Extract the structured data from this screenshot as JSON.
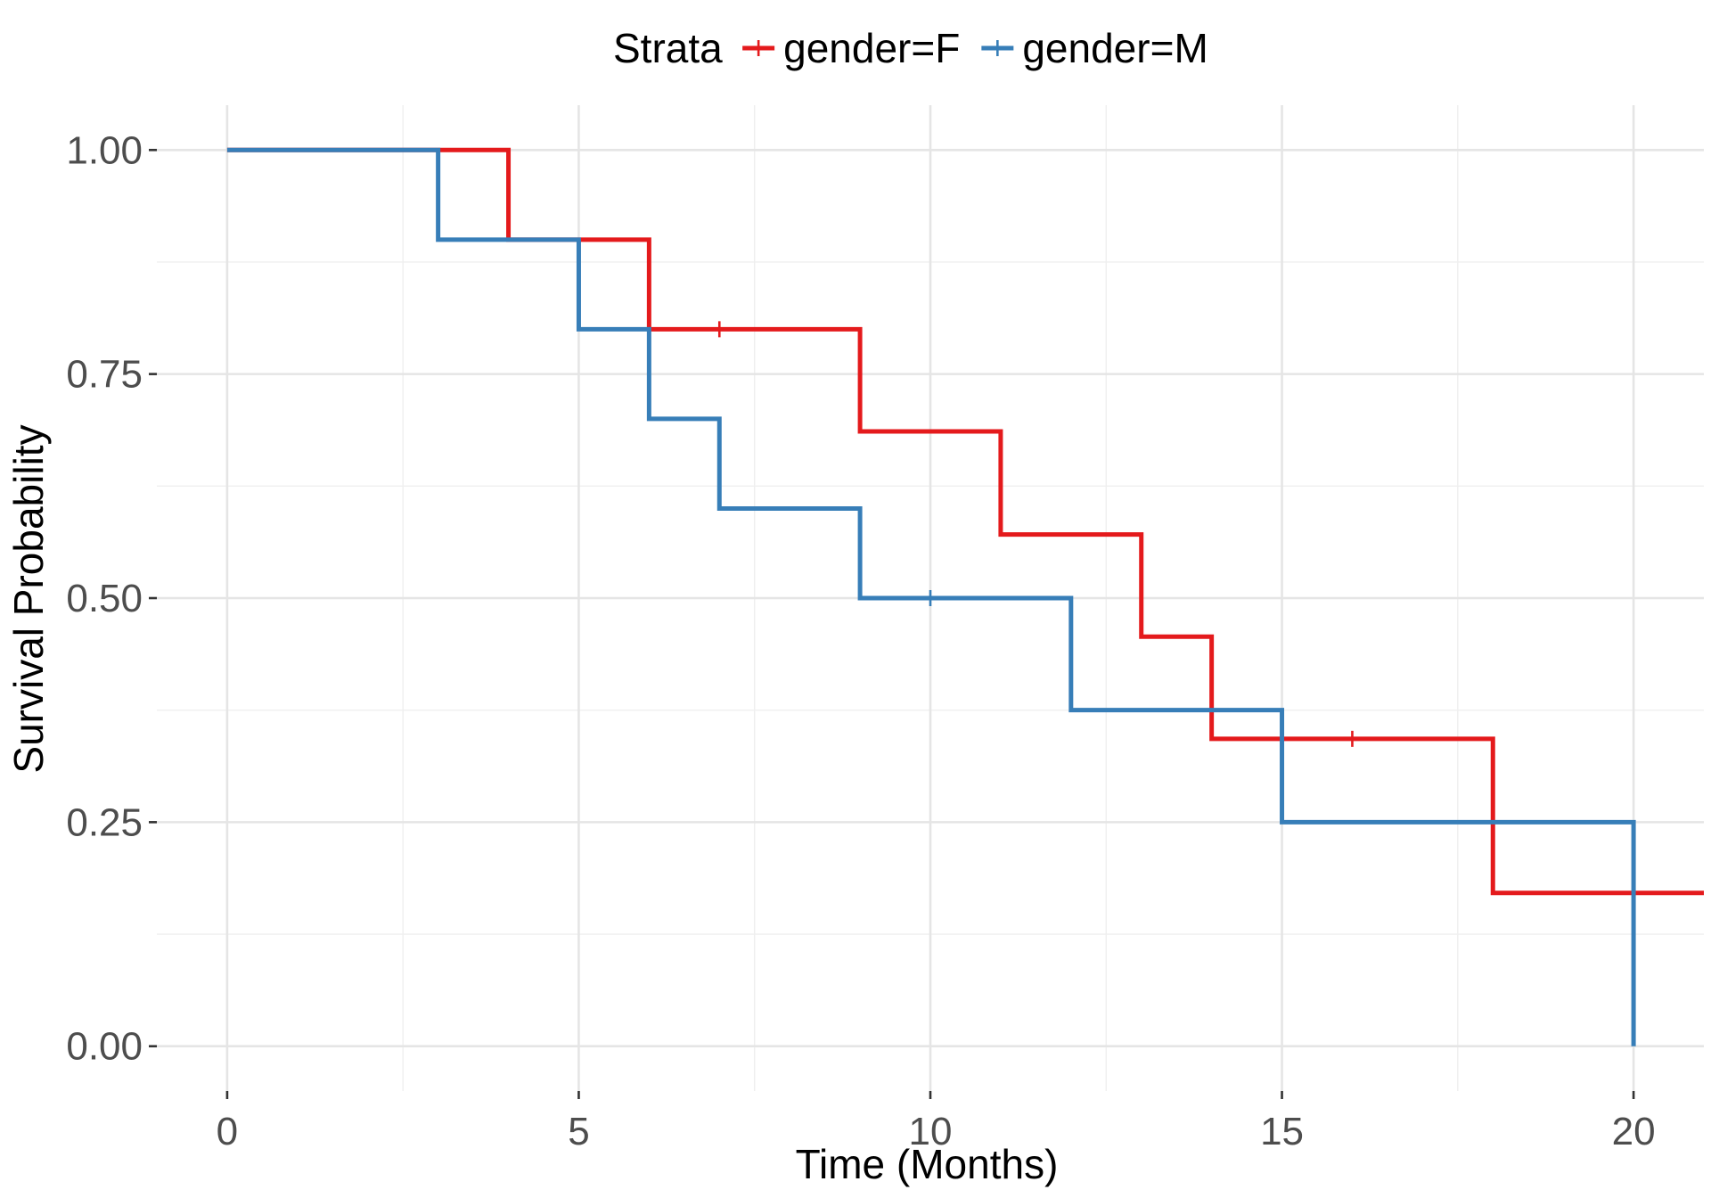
{
  "chart_data": {
    "type": "line",
    "subtype": "step",
    "xlabel": "Time (Months)",
    "ylabel": "Survival Probability",
    "xlim": [
      -1,
      21
    ],
    "ylim": [
      -0.05,
      1.05
    ],
    "x_ticks": [
      0,
      5,
      10,
      15,
      20
    ],
    "x_tick_labels": [
      "0",
      "5",
      "10",
      "15",
      "20"
    ],
    "y_ticks": [
      0,
      0.25,
      0.5,
      0.75,
      1
    ],
    "y_tick_labels": [
      "0.00",
      "0.25",
      "0.50",
      "0.75",
      "1.00"
    ],
    "grid": true,
    "legend": {
      "title": "Strata",
      "position": "top"
    },
    "series": [
      {
        "name": "gender=F",
        "color": "#e41a1c",
        "steps": [
          {
            "x": 0,
            "y": 1.0
          },
          {
            "x": 4,
            "y": 0.9
          },
          {
            "x": 6,
            "y": 0.8
          },
          {
            "x": 9,
            "y": 0.686
          },
          {
            "x": 11,
            "y": 0.571
          },
          {
            "x": 13,
            "y": 0.457
          },
          {
            "x": 14,
            "y": 0.343
          },
          {
            "x": 18,
            "y": 0.171
          }
        ],
        "end_x": 21,
        "censored": [
          {
            "x": 7,
            "y": 0.8
          },
          {
            "x": 16,
            "y": 0.343
          }
        ]
      },
      {
        "name": "gender=M",
        "color": "#377eb8",
        "steps": [
          {
            "x": 0,
            "y": 1.0
          },
          {
            "x": 3,
            "y": 0.9
          },
          {
            "x": 5,
            "y": 0.8
          },
          {
            "x": 6,
            "y": 0.7
          },
          {
            "x": 7,
            "y": 0.6
          },
          {
            "x": 9,
            "y": 0.5
          },
          {
            "x": 12,
            "y": 0.375
          },
          {
            "x": 15,
            "y": 0.25
          },
          {
            "x": 20,
            "y": 0.0
          }
        ],
        "end_x": 20,
        "censored": [
          {
            "x": 10,
            "y": 0.5
          }
        ]
      }
    ]
  }
}
